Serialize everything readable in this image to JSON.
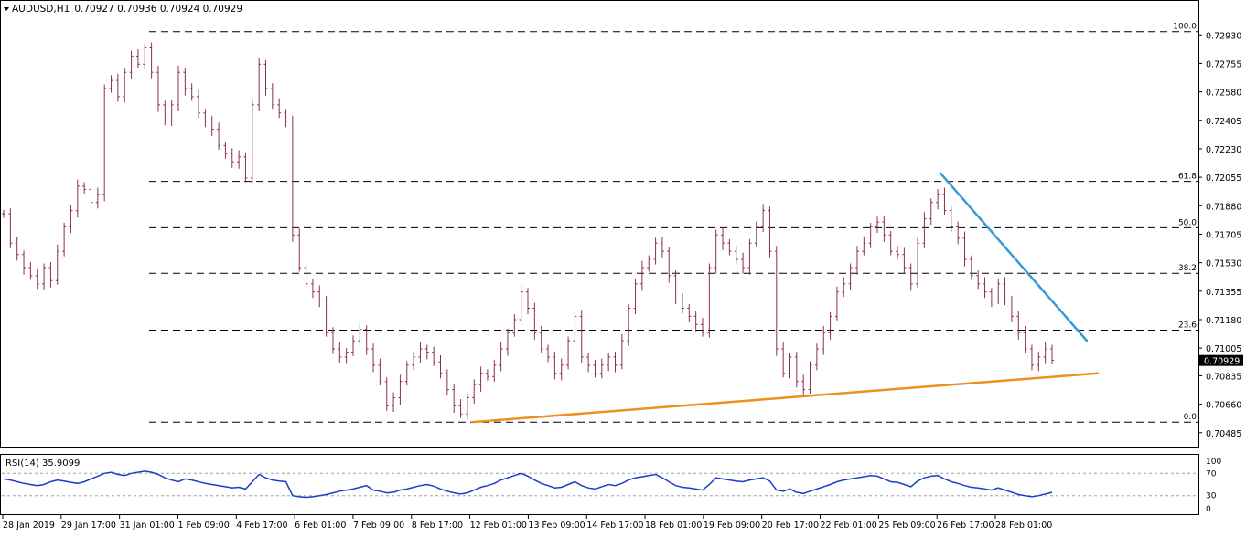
{
  "chart_data": {
    "type": "line",
    "header": {
      "symbol": "AUDUSD,H1",
      "ohlc": "0.70927 0.70936 0.70924 0.70929"
    },
    "price_axis": {
      "ticks": [
        "0.72930",
        "0.72755",
        "0.72580",
        "0.72405",
        "0.72230",
        "0.72055",
        "0.71880",
        "0.71705",
        "0.71530",
        "0.71355",
        "0.71180",
        "0.71005",
        "0.70835",
        "0.70660",
        "0.70485"
      ],
      "tick_values": [
        0.7293,
        0.72755,
        0.7258,
        0.72405,
        0.7223,
        0.72055,
        0.7188,
        0.71705,
        0.7153,
        0.71355,
        0.7118,
        0.71005,
        0.70835,
        0.7066,
        0.70485
      ],
      "ylim": [
        0.7045,
        0.7301
      ],
      "current_price": "0.70929",
      "current_value": 0.70929
    },
    "fib_levels": [
      {
        "label": "100.0",
        "value": 0.7295
      },
      {
        "label": "61.8",
        "value": 0.7203
      },
      {
        "label": "50.0",
        "value": 0.71745
      },
      {
        "label": "38.2",
        "value": 0.71465
      },
      {
        "label": "23.6",
        "value": 0.71115
      },
      {
        "label": "0.0",
        "value": 0.7055
      }
    ],
    "price_series": {
      "color": "#8b2f4f",
      "close": [
        0.7183,
        0.7165,
        0.7158,
        0.715,
        0.7145,
        0.714,
        0.715,
        0.7142,
        0.716,
        0.7175,
        0.7185,
        0.72,
        0.7198,
        0.719,
        0.7195,
        0.726,
        0.7265,
        0.7255,
        0.727,
        0.728,
        0.7275,
        0.7285,
        0.727,
        0.725,
        0.724,
        0.725,
        0.727,
        0.726,
        0.7255,
        0.7245,
        0.724,
        0.7235,
        0.7225,
        0.722,
        0.7215,
        0.7218,
        0.7205,
        0.725,
        0.7275,
        0.726,
        0.725,
        0.7245,
        0.724,
        0.717,
        0.715,
        0.714,
        0.7135,
        0.713,
        0.711,
        0.71,
        0.7095,
        0.7098,
        0.7105,
        0.7112,
        0.71,
        0.709,
        0.708,
        0.7065,
        0.707,
        0.708,
        0.709,
        0.7095,
        0.71,
        0.7098,
        0.7092,
        0.7085,
        0.7075,
        0.7065,
        0.706,
        0.707,
        0.7078,
        0.7085,
        0.7083,
        0.709,
        0.71,
        0.711,
        0.7118,
        0.7135,
        0.7125,
        0.711,
        0.71,
        0.7095,
        0.7085,
        0.709,
        0.7105,
        0.712,
        0.7095,
        0.709,
        0.7085,
        0.709,
        0.7095,
        0.709,
        0.7105,
        0.7125,
        0.714,
        0.715,
        0.7155,
        0.7165,
        0.716,
        0.7145,
        0.713,
        0.7125,
        0.712,
        0.7115,
        0.711,
        0.715,
        0.717,
        0.7165,
        0.716,
        0.7155,
        0.715,
        0.7165,
        0.7175,
        0.7185,
        0.716,
        0.71,
        0.7085,
        0.7095,
        0.708,
        0.7075,
        0.709,
        0.71,
        0.711,
        0.712,
        0.7135,
        0.714,
        0.715,
        0.716,
        0.7165,
        0.7175,
        0.7178,
        0.717,
        0.716,
        0.7158,
        0.715,
        0.714,
        0.7165,
        0.718,
        0.719,
        0.7195,
        0.7185,
        0.7175,
        0.7168,
        0.7155,
        0.7145,
        0.714,
        0.7135,
        0.713,
        0.714,
        0.713,
        0.712,
        0.711,
        0.71,
        0.709,
        0.7095,
        0.71,
        0.7093
      ],
      "low_min": 0.7055,
      "high_max": 0.7295
    },
    "trendlines": [
      {
        "name": "resistance",
        "color": "#3a9ad9",
        "from": {
          "x": 1028,
          "value": 0.7208
        },
        "to": {
          "x": 1188,
          "value": 0.7105
        }
      },
      {
        "name": "support",
        "color": "#f0901c",
        "from": {
          "x": 516,
          "value": 0.7055
        },
        "to": {
          "x": 1200,
          "value": 0.7085
        }
      }
    ],
    "x_axis": {
      "labels": [
        "28 Jan 2019",
        "29 Jan 17:00",
        "31 Jan 01:00",
        "1 Feb 09:00",
        "4 Feb 17:00",
        "6 Feb 01:00",
        "7 Feb 09:00",
        "8 Feb 17:00",
        "12 Feb 01:00",
        "13 Feb 09:00",
        "14 Feb 17:00",
        "18 Feb 01:00",
        "19 Feb 09:00",
        "20 Feb 17:00",
        "22 Feb 01:00",
        "25 Feb 09:00",
        "26 Feb 17:00",
        "28 Feb 01:00"
      ]
    },
    "rsi": {
      "title": "RSI(14) 35.9099",
      "ticks": [
        "100",
        "70",
        "30",
        "0"
      ],
      "tick_values": [
        100,
        70,
        30,
        0
      ],
      "ylim": [
        0,
        100
      ],
      "color": "#1a3fc8",
      "values": [
        60,
        58,
        55,
        52,
        50,
        48,
        50,
        55,
        58,
        56,
        54,
        52,
        55,
        60,
        65,
        70,
        72,
        68,
        66,
        70,
        72,
        74,
        72,
        68,
        62,
        58,
        55,
        60,
        58,
        55,
        52,
        50,
        48,
        46,
        44,
        45,
        42,
        55,
        68,
        62,
        58,
        56,
        55,
        30,
        28,
        27,
        28,
        30,
        32,
        35,
        38,
        40,
        42,
        45,
        48,
        40,
        38,
        35,
        36,
        40,
        42,
        45,
        48,
        50,
        47,
        42,
        38,
        35,
        33,
        35,
        40,
        45,
        48,
        52,
        58,
        62,
        66,
        70,
        65,
        58,
        52,
        48,
        44,
        45,
        50,
        55,
        48,
        44,
        42,
        46,
        50,
        48,
        52,
        58,
        62,
        64,
        66,
        68,
        62,
        55,
        48,
        45,
        44,
        42,
        40,
        50,
        62,
        60,
        58,
        56,
        55,
        58,
        60,
        62,
        56,
        40,
        38,
        42,
        36,
        34,
        38,
        42,
        46,
        50,
        55,
        58,
        60,
        62,
        64,
        66,
        65,
        60,
        55,
        54,
        50,
        46,
        56,
        62,
        65,
        66,
        60,
        55,
        52,
        48,
        45,
        44,
        42,
        40,
        44,
        40,
        36,
        32,
        30,
        28,
        30,
        33,
        36
      ]
    }
  }
}
